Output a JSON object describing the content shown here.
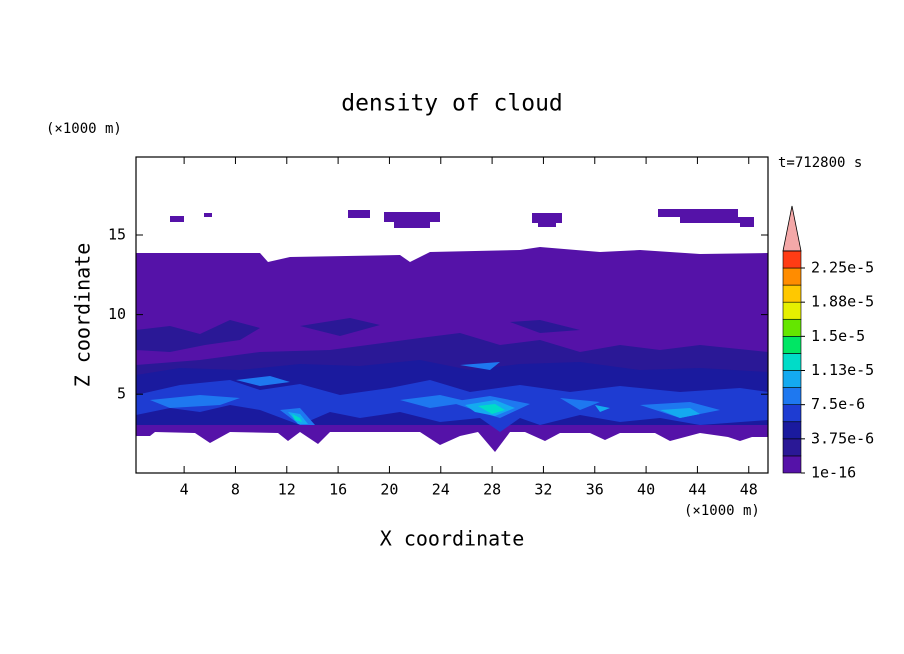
{
  "chart_data": {
    "type": "contour",
    "title": "density of cloud",
    "x_label": "X coordinate",
    "y_label": "Z coordinate",
    "x_unit": "(×1000 m)",
    "y_unit": "(×1000 m)",
    "time_label": "t=712800 s",
    "xlim": [
      0.25,
      49.5
    ],
    "xticks": [
      4,
      8,
      12,
      16,
      20,
      24,
      28,
      32,
      36,
      40,
      44,
      48
    ],
    "ylim": [
      0.05,
      19.9
    ],
    "yticks": [
      5,
      10,
      15
    ],
    "levels": [
      1e-16,
      1.875e-06,
      3.75e-06,
      5.625e-06,
      7.5e-06,
      9.375e-06,
      1.125e-05,
      1.3125e-05,
      1.5e-05,
      1.6875e-05,
      1.875e-05,
      2.0625e-05,
      2.25e-05
    ],
    "level_colors": [
      "#5512a8",
      "#2a1896",
      "#1a1a9e",
      "#1e3cd2",
      "#1e78f0",
      "#14aaf0",
      "#00dcc8",
      "#00e664",
      "#64e600",
      "#e6f000",
      "#ffc800",
      "#ff8c00",
      "#ff3c14"
    ],
    "overflow_color": "#f4a8a8",
    "colorbar_ticks": [
      {
        "value": 1e-16,
        "label": "1e-16"
      },
      {
        "value": 3.75e-06,
        "label": "3.75e-6"
      },
      {
        "value": 7.5e-06,
        "label": "7.5e-6"
      },
      {
        "value": 1.125e-05,
        "label": "1.13e-5"
      },
      {
        "value": 1.5e-05,
        "label": "1.5e-5"
      },
      {
        "value": 1.875e-05,
        "label": "1.88e-5"
      },
      {
        "value": 2.25e-05,
        "label": "2.25e-5"
      }
    ]
  }
}
